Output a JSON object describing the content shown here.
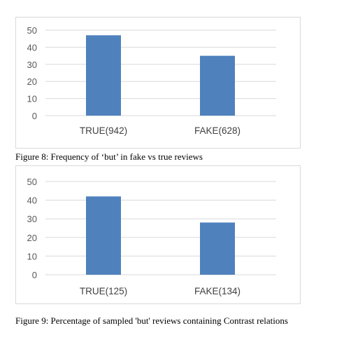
{
  "figures": [
    {
      "caption": "Figure 8: Frequency of ‘but’ in fake vs true reviews",
      "chart_data": {
        "type": "bar",
        "categories": [
          "TRUE(942)",
          "FAKE(628)"
        ],
        "values": [
          47,
          35
        ],
        "ylim": [
          0,
          50
        ],
        "yticks": [
          0,
          10,
          20,
          30,
          40,
          50
        ],
        "grid": true,
        "bar_color": "#4f81bd",
        "grid_color": "#d9d9d9"
      }
    },
    {
      "caption": "Figure 9: Percentage of sampled 'but' reviews containing Contrast relations",
      "chart_data": {
        "type": "bar",
        "categories": [
          "TRUE(125)",
          "FAKE(134)"
        ],
        "values": [
          42,
          28
        ],
        "ylim": [
          0,
          50
        ],
        "yticks": [
          0,
          10,
          20,
          30,
          40,
          50
        ],
        "grid": true,
        "bar_color": "#4f81bd",
        "grid_color": "#d9d9d9"
      }
    }
  ]
}
